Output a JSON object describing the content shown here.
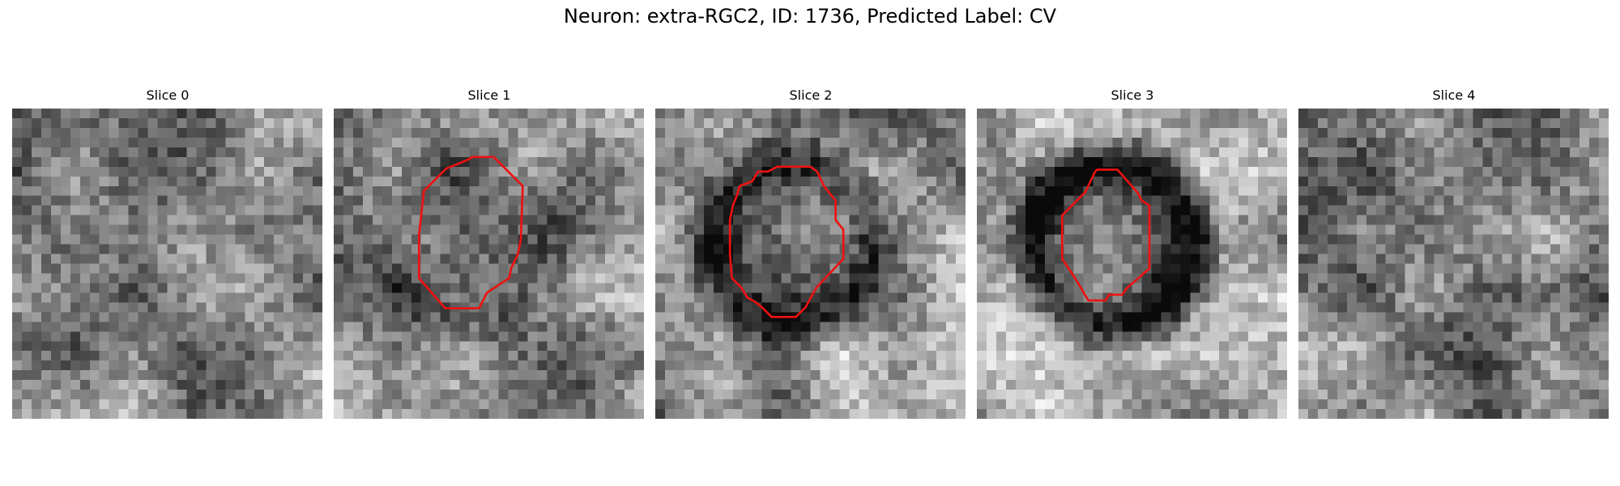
{
  "figure": {
    "title": "Neuron: extra-RGC2, ID: 1736, Predicted Label: CV"
  },
  "colors": {
    "contour": "#ee1111",
    "background": "#ffffff"
  },
  "slices": [
    {
      "label": "Slice 0",
      "seed": 11,
      "dark_ring": 0.0,
      "contour": false
    },
    {
      "label": "Slice 1",
      "seed": 23,
      "dark_ring": 0.15,
      "contour": true
    },
    {
      "label": "Slice 2",
      "seed": 37,
      "dark_ring": 0.35,
      "contour": true
    },
    {
      "label": "Slice 3",
      "seed": 51,
      "dark_ring": 0.55,
      "contour": true
    },
    {
      "label": "Slice 4",
      "seed": 67,
      "dark_ring": 0.05,
      "contour": false
    }
  ]
}
